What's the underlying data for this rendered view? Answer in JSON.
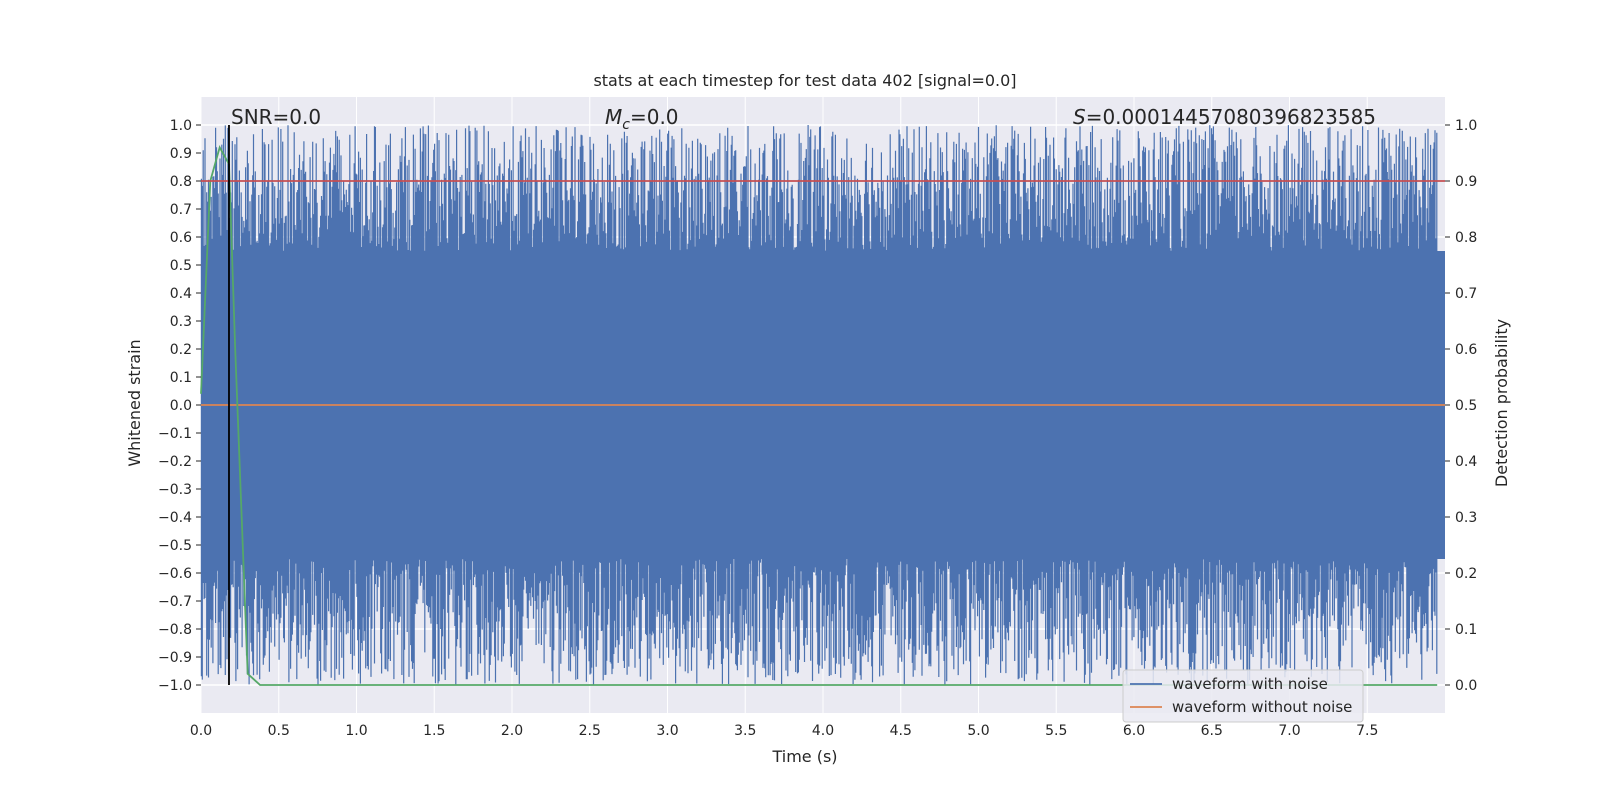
{
  "chart_data": {
    "type": "line",
    "title": "stats at each timestep for test data 402 [signal=0.0]",
    "xlabel": "Time (s)",
    "ylabel_left": "Whitened strain",
    "ylabel_right": "Detection probability",
    "xlim": [
      0.0,
      8.0
    ],
    "ylim_left": [
      -1.1,
      1.1
    ],
    "ylim_right": [
      -0.05,
      1.05
    ],
    "x_ticks": [
      "0.0",
      "0.5",
      "1.0",
      "1.5",
      "2.0",
      "2.5",
      "3.0",
      "3.5",
      "4.0",
      "4.5",
      "5.0",
      "5.5",
      "6.0",
      "6.5",
      "7.0",
      "7.5"
    ],
    "y_ticks_left": [
      "1.0",
      "0.9",
      "0.8",
      "0.7",
      "0.6",
      "0.5",
      "0.4",
      "0.3",
      "0.2",
      "0.1",
      "0.0",
      "−0.1",
      "−0.2",
      "−0.3",
      "−0.4",
      "−0.5",
      "−0.6",
      "−0.7",
      "−0.8",
      "−0.9",
      "−1.0"
    ],
    "y_ticks_right": [
      "1.0",
      "0.9",
      "0.8",
      "0.7",
      "0.6",
      "0.5",
      "0.4",
      "0.3",
      "0.2",
      "0.1",
      "0.0"
    ],
    "grid": true,
    "annotations": {
      "snr": "SNR=0.0",
      "mc_symbol": "M",
      "mc_sub": "c",
      "mc_value": "=0.0",
      "s_symbol": "S",
      "s_value": "=0.00014457080396823585"
    },
    "legend": {
      "placement": "lower-right",
      "entries": [
        {
          "label": "waveform with noise",
          "color": "#4c72b0"
        },
        {
          "label": "waveform without noise",
          "color": "#dd8452"
        }
      ]
    },
    "series": [
      {
        "name": "waveform with noise",
        "axis": "left",
        "color": "#4c72b0",
        "description_range": [
          -1.0,
          1.0
        ]
      },
      {
        "name": "waveform without noise",
        "axis": "left",
        "color": "#dd8452",
        "x": [
          0.0,
          8.0
        ],
        "y": [
          0.0,
          0.0
        ]
      },
      {
        "name": "Detection probability",
        "axis": "right",
        "color": "#55a868",
        "x": [
          0.0,
          0.06,
          0.12,
          0.18,
          0.22,
          0.3,
          0.38,
          7.95
        ],
        "y": [
          0.52,
          0.9,
          0.96,
          0.93,
          0.6,
          0.02,
          0.0,
          0.0
        ]
      },
      {
        "name": "threshold",
        "axis": "right",
        "color": "#c44e52",
        "x": [
          0.0,
          8.0
        ],
        "y": [
          0.9,
          0.9
        ]
      }
    ],
    "marker_line": {
      "x": 0.18,
      "color": "#000000"
    },
    "colors": {
      "axes_bg": "#eaeaf2",
      "grid": "#ffffff",
      "noise": "#4c72b0",
      "clean": "#dd8452",
      "prob": "#55a868",
      "threshold": "#c44e52"
    }
  }
}
